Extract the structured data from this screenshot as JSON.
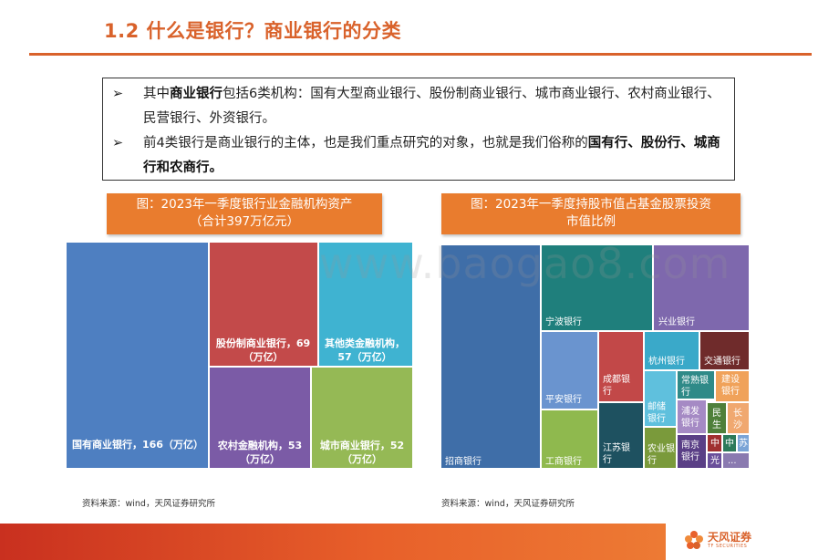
{
  "title": "1.2 什么是银行？商业银行的分类",
  "bullets": {
    "marker": "➢",
    "b1_pre": "其中",
    "b1_bold": "商业银行",
    "b1_post": "包括6类机构：国有大型商业银行、股份制商业银行、城市商业银行、农村商业银行、民营银行、外资银行。",
    "b2_pre": "前4类银行是商业银行的主体，也是我们重点研究的对象，也就是我们俗称的",
    "b2_bold": "国有行、股份行、城商行和农商行。"
  },
  "chart_left": {
    "title_line1": "图：2023年一季度银行业金融机构资产",
    "title_line2": "（合计397万亿元）",
    "source": "资料来源：wind，天风证券研究所",
    "cells": [
      {
        "label": "国有商业银行，166（万亿）",
        "color": "#4e7fc1"
      },
      {
        "label": "股份制商业银行，69（万亿）",
        "color": "#c34a4a"
      },
      {
        "label": "其他类金融机构，57（万亿）",
        "color": "#3fb3d1"
      },
      {
        "label": "农村金融机构，53（万亿）",
        "color": "#7b5ba6"
      },
      {
        "label": "城市商业银行，52（万亿）",
        "color": "#95b955"
      }
    ]
  },
  "chart_right": {
    "title_line1": "图：2023年一季度持股市值占基金股票投资",
    "title_line2": "市值比例",
    "source": "资料来源：wind，天风证券研究所",
    "cells": [
      {
        "label": "招商银行",
        "color": "#3f6ea8"
      },
      {
        "label": "宁波银行",
        "color": "#1f7f7c"
      },
      {
        "label": "兴业银行",
        "color": "#7e68ad"
      },
      {
        "label": "平安银行",
        "color": "#6a94cf"
      },
      {
        "label": "成都银行",
        "color": "#c24848"
      },
      {
        "label": "杭州银行",
        "color": "#3aa9c9"
      },
      {
        "label": "交通银行",
        "color": "#6f2b2b"
      },
      {
        "label": "工商银行",
        "color": "#8fb94e"
      },
      {
        "label": "江苏银行",
        "color": "#1e5160"
      },
      {
        "label": "邮储银行",
        "color": "#5fc0dd"
      },
      {
        "label": "常熟银行",
        "color": "#2f8a88"
      },
      {
        "label": "建设银行",
        "color": "#f0a25a"
      },
      {
        "label": "浦发银行",
        "color": "#a58ac4"
      },
      {
        "label": "民生",
        "color": "#4f7f3a"
      },
      {
        "label": "长沙",
        "color": "#f0a870"
      },
      {
        "label": "农业银行",
        "color": "#7a9a3b"
      },
      {
        "label": "南京银行",
        "color": "#5a3f86"
      },
      {
        "label": "中",
        "color": "#a03030"
      },
      {
        "label": "中",
        "color": "#2d7a5a"
      },
      {
        "label": "苏",
        "color": "#7aa4d6"
      },
      {
        "label": "光",
        "color": "#6a4f9a"
      },
      {
        "label": "...",
        "color": "#8a7ab0"
      }
    ]
  },
  "watermark": "www.baogao8.com",
  "footer": {
    "logo_cn": "天风证券",
    "logo_en": "TF SECURITIES"
  }
}
